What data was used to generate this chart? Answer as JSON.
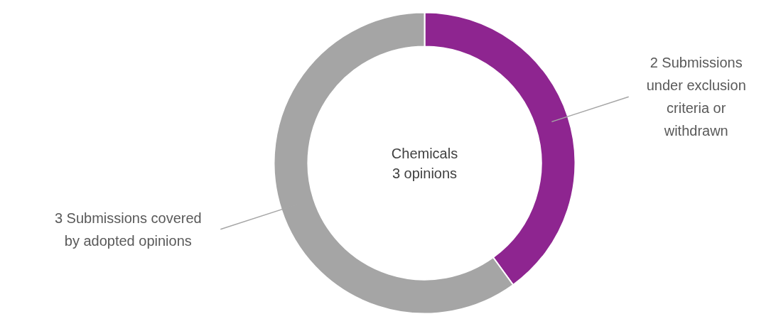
{
  "chart_data": {
    "type": "donut",
    "categories": [
      "2 Submissions under exclusion criteria or withdrawn",
      "3 Submissions covered by adopted opinions"
    ],
    "values": [
      2,
      3
    ],
    "colors": [
      "#8e2590",
      "#a5a5a5"
    ],
    "annotations": [
      "Chemicals",
      "3 opinions"
    ]
  }
}
